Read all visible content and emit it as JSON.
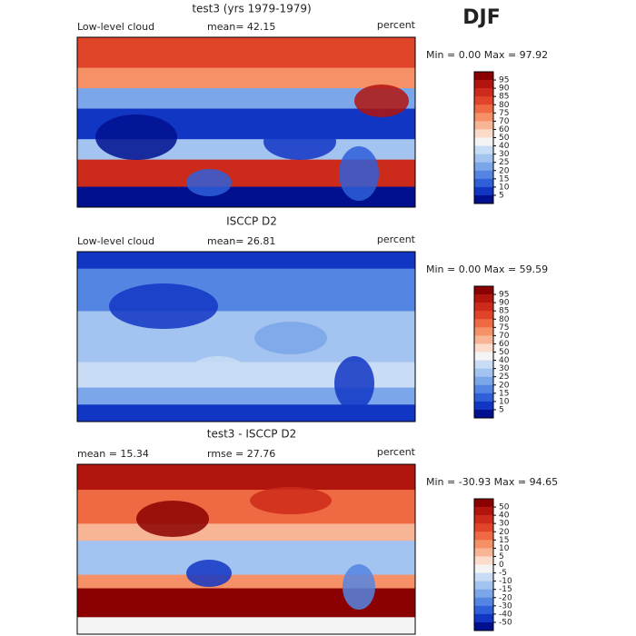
{
  "header": {
    "title": "DJF"
  },
  "panels": [
    {
      "title": "test3 (yrs 1979-1979)",
      "left_label": "Low-level cloud",
      "stat_label": "mean=  42.15",
      "unit": "percent",
      "range_label": "Min =    0.00 Max =  97.92",
      "colorbar": [
        "95",
        "90",
        "85",
        "80",
        "75",
        "70",
        "60",
        "50",
        "40",
        "30",
        "25",
        "20",
        "15",
        "10",
        "5"
      ]
    },
    {
      "title": "ISCCP D2",
      "left_label": "Low-level cloud",
      "stat_label": "mean=  26.81",
      "unit": "percent",
      "range_label": "Min =    0.00 Max =  59.59",
      "colorbar": [
        "95",
        "90",
        "85",
        "80",
        "75",
        "70",
        "60",
        "50",
        "40",
        "30",
        "25",
        "20",
        "15",
        "10",
        "5"
      ]
    },
    {
      "title": "test3 - ISCCP D2",
      "left_label": "mean =  15.34",
      "stat_label": "rmse =  27.76",
      "unit": "percent",
      "range_label": "Min = -30.93 Max =  94.65",
      "colorbar": [
        "50",
        "40",
        "30",
        "20",
        "15",
        "10",
        "5",
        "0",
        "-5",
        "-10",
        "-15",
        "-20",
        "-30",
        "-40",
        "-50"
      ]
    }
  ]
}
